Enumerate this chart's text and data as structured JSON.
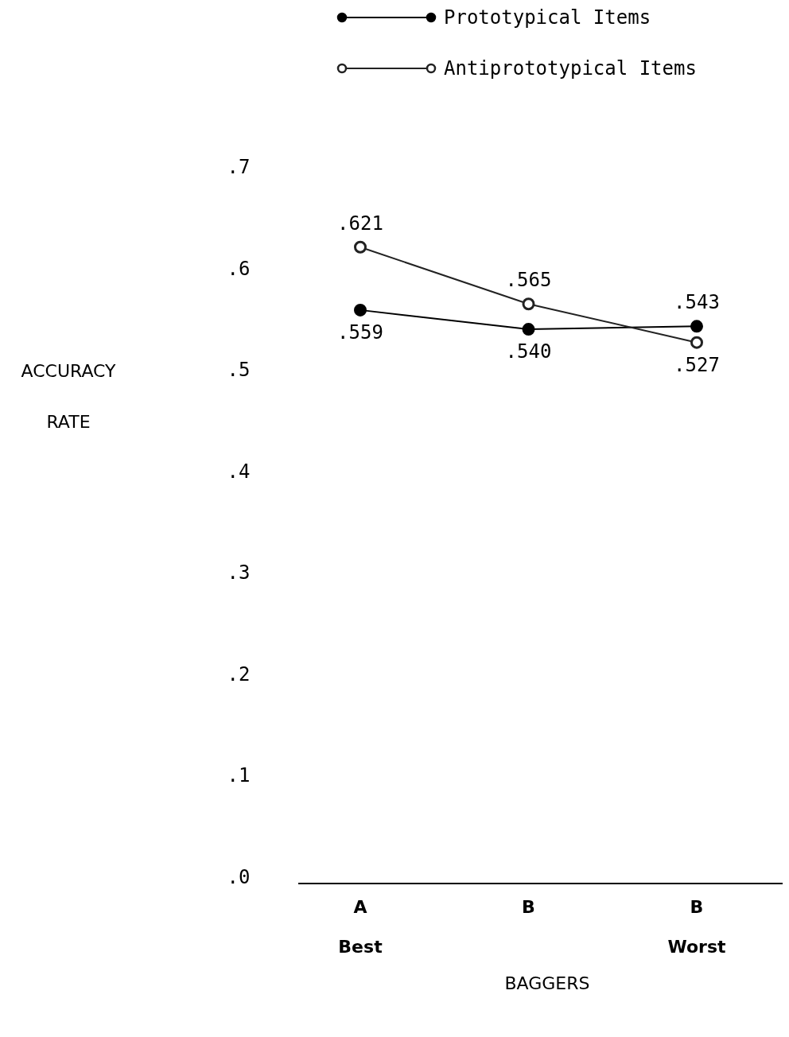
{
  "chart_data": {
    "type": "line",
    "ylabel": "ACCURACY RATE",
    "xlabel": "BAGGERS",
    "categories": [
      "A\nBest",
      "B",
      "B\nWorst"
    ],
    "ylim": [
      0,
      0.7
    ],
    "yticks": [
      {
        "value": 0,
        "label": ".0"
      },
      {
        "value": 0.1,
        "label": ".1"
      },
      {
        "value": 0.2,
        "label": ".2"
      },
      {
        "value": 0.3,
        "label": ".3"
      },
      {
        "value": 0.4,
        "label": ".4"
      },
      {
        "value": 0.5,
        "label": ".5"
      },
      {
        "value": 0.6,
        "label": ".6"
      },
      {
        "value": 0.7,
        "label": ".7"
      }
    ],
    "series": [
      {
        "name": "Prototypical Items",
        "color": "#000000",
        "values": [
          0.559,
          0.54,
          0.543
        ],
        "value_labels": [
          ".559",
          ".540",
          ".543"
        ]
      },
      {
        "name": "Antiprototypical Items",
        "color": "#222222",
        "values": [
          0.621,
          0.565,
          0.527
        ],
        "value_labels": [
          ".621",
          ".565",
          ".527"
        ]
      }
    ],
    "marker": "circle",
    "legend": "top",
    "grid": false
  }
}
